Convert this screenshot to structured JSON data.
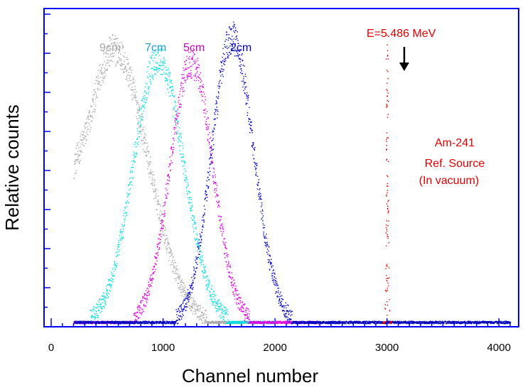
{
  "chart_data": {
    "type": "scatter",
    "title": "",
    "xlabel": "Channel number",
    "ylabel": "Relative counts",
    "xlim": [
      0,
      4100
    ],
    "ylim": [
      0,
      1.0
    ],
    "x_ticks": [
      0,
      1000,
      2000,
      3000,
      4000
    ],
    "x_tick_labels": [
      "0",
      "1000",
      "2000",
      "3000",
      "4000"
    ],
    "y_tick_labels_shown": false,
    "grid": false,
    "legend": "inline-labels-top",
    "series": [
      {
        "name": "9cm",
        "color": "#a8a8a8",
        "peak_x": 560,
        "peak_y": 0.87,
        "width_left": 280,
        "width_right": 300,
        "x_start": 200,
        "x_end": 1800
      },
      {
        "name": "7cm",
        "color": "#00e0e0",
        "peak_x": 950,
        "peak_y": 0.84,
        "width_left": 220,
        "width_right": 230,
        "x_start": 200,
        "x_end": 2000
      },
      {
        "name": "5cm",
        "color": "#e000e0",
        "peak_x": 1250,
        "peak_y": 0.83,
        "width_left": 190,
        "width_right": 190,
        "x_start": 200,
        "x_end": 2400
      },
      {
        "name": "2cm",
        "color": "#0000c0",
        "peak_x": 1610,
        "peak_y": 0.91,
        "width_left": 180,
        "width_right": 195,
        "x_start": 200,
        "x_end": 4100
      },
      {
        "name": "Am-241 Ref. Source (In vacuum)",
        "color": "#e00000",
        "peak_x": 3000,
        "peak_y": 0.87,
        "width_left": 8,
        "width_right": 8,
        "x_start": 2950,
        "x_end": 3050
      }
    ],
    "annotations": [
      {
        "text": "E=5.486 MeV",
        "color": "#e00000",
        "points_to_x": 3000
      },
      {
        "text": "Am-241",
        "color": "#e00000"
      },
      {
        "text": "Ref.  Source",
        "color": "#e00000"
      },
      {
        "text": "(In vacuum)",
        "color": "#e00000"
      }
    ]
  }
}
